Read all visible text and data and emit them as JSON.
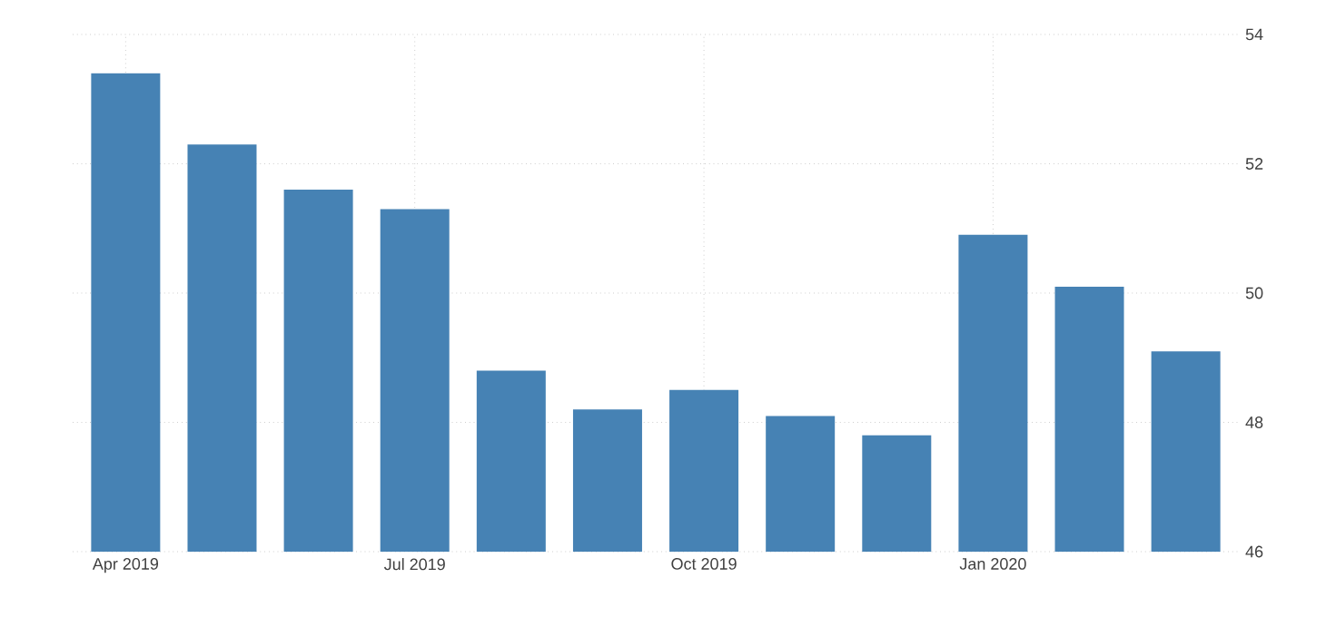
{
  "chart_data": {
    "type": "bar",
    "categories": [
      "Apr 2019",
      null,
      null,
      "Jul 2019",
      null,
      null,
      "Oct 2019",
      null,
      null,
      "Jan 2020",
      null,
      null
    ],
    "values": [
      53.4,
      52.3,
      51.6,
      51.3,
      48.8,
      48.2,
      48.5,
      48.1,
      47.8,
      50.9,
      50.1,
      49.1
    ],
    "color": "#4682b4",
    "ylim": [
      46,
      54
    ],
    "yticks": [
      46,
      48,
      50,
      52,
      54
    ],
    "grid": true
  }
}
